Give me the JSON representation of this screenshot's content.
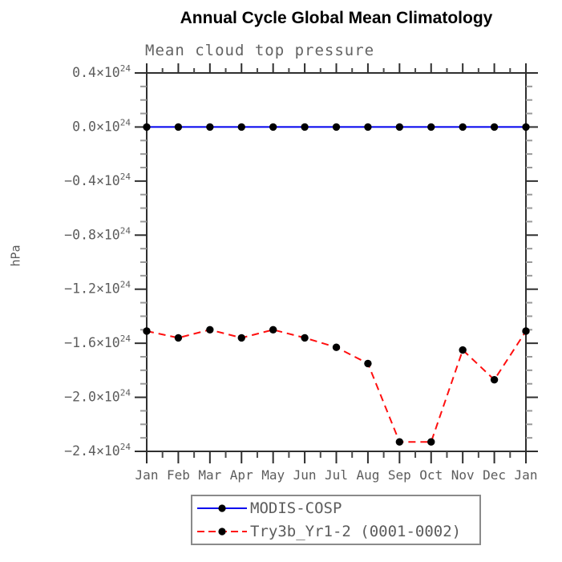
{
  "chart_data": {
    "type": "line",
    "title": "Annual Cycle Global Mean Climatology",
    "subtitle": "Mean cloud top pressure",
    "ylabel": "hPa",
    "categories": [
      "Jan",
      "Feb",
      "Mar",
      "Apr",
      "May",
      "Jun",
      "Jul",
      "Aug",
      "Sep",
      "Oct",
      "Nov",
      "Dec",
      "Jan"
    ],
    "ylim": [
      -2.4,
      0.4
    ],
    "y_tick_step": 0.4,
    "y_minor_step": 0.1,
    "y_unit_exponent": "24",
    "x_minor": "half-month",
    "grid": false,
    "legend_position": "bottom",
    "series": [
      {
        "name": "MODIS-COSP",
        "color": "#0000ee",
        "style": "solid",
        "marker": "circle",
        "marker_color": "#000000",
        "values": [
          0.0,
          0.0,
          0.0,
          0.0,
          0.0,
          0.0,
          0.0,
          0.0,
          0.0,
          0.0,
          0.0,
          0.0,
          0.0
        ]
      },
      {
        "name": "Try3b_Yr1-2 (0001-0002)",
        "color": "#ff0f0f",
        "style": "dashed",
        "marker": "circle",
        "marker_color": "#000000",
        "values": [
          -1.51,
          -1.56,
          -1.5,
          -1.56,
          -1.5,
          -1.56,
          -1.63,
          -1.75,
          -2.33,
          -2.33,
          -1.65,
          -1.87,
          -1.51
        ]
      }
    ],
    "values_unit": "x10^24 hPa",
    "axis_color": "#2f2f2f",
    "x_minor_tick_color": "#4a4a4a",
    "y_minor_tick_color": "#9a9a9a",
    "tick_label_color": "#5c5c5c",
    "title_color": "#000000"
  }
}
